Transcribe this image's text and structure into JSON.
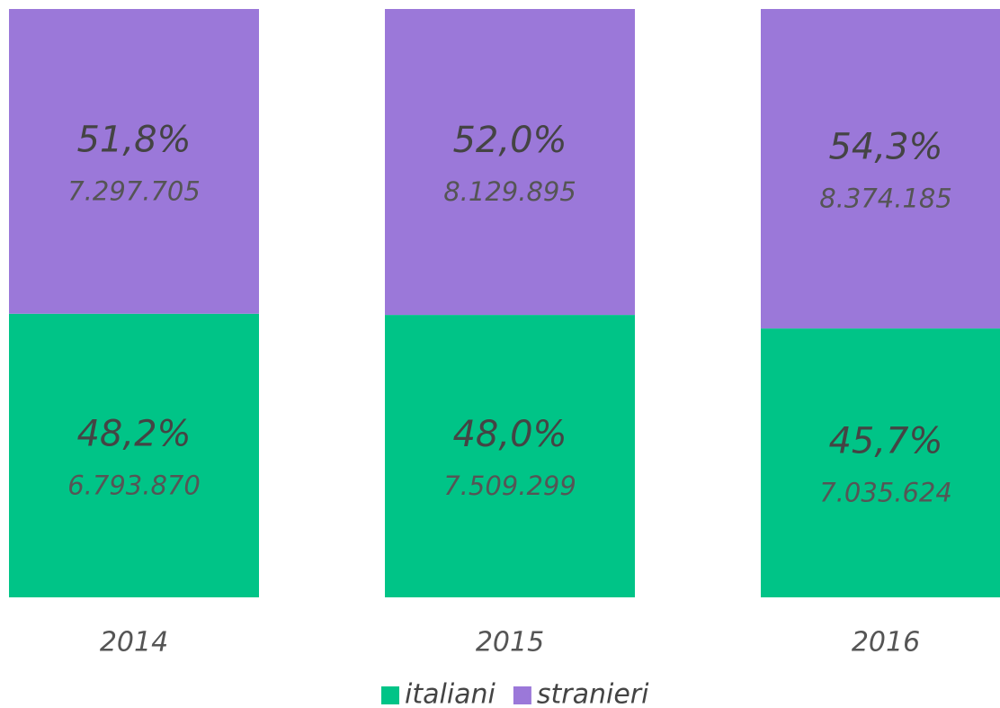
{
  "chart_data": {
    "type": "stacked_bar",
    "categories": [
      "2014",
      "2015",
      "2016"
    ],
    "ylim": [
      0,
      100
    ],
    "series": [
      {
        "name": "italiani",
        "color": "#00c487",
        "values": [
          48.2,
          48.0,
          45.7
        ],
        "value_labels": [
          "48,2%",
          "48,0%",
          "45,7%"
        ],
        "counts": [
          6793870,
          7509299,
          7035624
        ],
        "count_labels": [
          "6.793.870",
          "7.509.299",
          "7.035.624"
        ]
      },
      {
        "name": "stranieri",
        "color": "#9b78d9",
        "values": [
          51.8,
          52.0,
          54.3
        ],
        "value_labels": [
          "51,8%",
          "52,0%",
          "54,3%"
        ],
        "counts": [
          7297705,
          8129895,
          8374185
        ],
        "count_labels": [
          "7.297.705",
          "8.129.895",
          "8.374.185"
        ]
      }
    ]
  }
}
